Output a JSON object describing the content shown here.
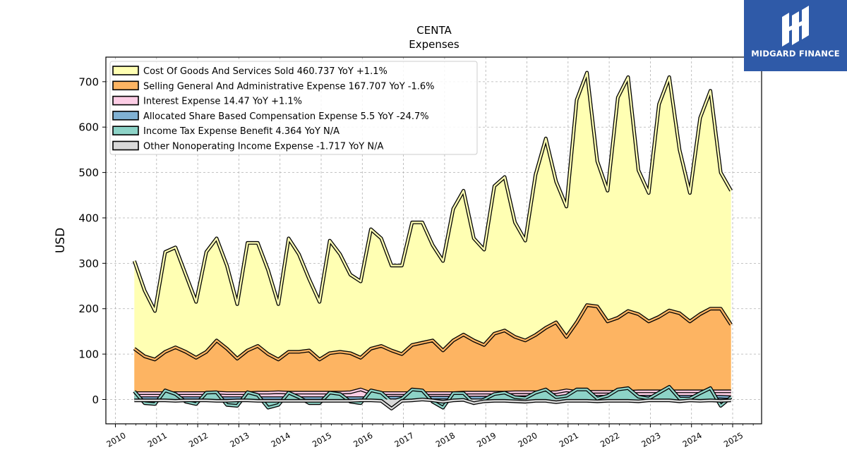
{
  "brand": {
    "name": "MIDGARD FINANCE",
    "bg_color": "#2f5aa8",
    "icon": "midgard-logo-icon"
  },
  "chart_data": {
    "type": "area",
    "title": "CENTA",
    "subtitle": "Expenses",
    "xlabel": "",
    "ylabel": "USD",
    "xlim": [
      2009.8,
      2025.7
    ],
    "ylim": [
      -55,
      755
    ],
    "x_ticks": [
      "2010",
      "2011",
      "2012",
      "2013",
      "2014",
      "2015",
      "2016",
      "2017",
      "2018",
      "2019",
      "2020",
      "2021",
      "2022",
      "2023",
      "2024",
      "2025"
    ],
    "y_ticks": [
      0,
      100,
      200,
      300,
      400,
      500,
      600,
      700
    ],
    "grid": true,
    "legend_position": "top-left",
    "x": [
      2010.46,
      2010.71,
      2010.96,
      2011.21,
      2011.46,
      2011.71,
      2011.96,
      2012.21,
      2012.46,
      2012.71,
      2012.96,
      2013.21,
      2013.46,
      2013.71,
      2013.96,
      2014.21,
      2014.46,
      2014.71,
      2014.96,
      2015.21,
      2015.46,
      2015.71,
      2015.96,
      2016.21,
      2016.46,
      2016.71,
      2016.96,
      2017.21,
      2017.46,
      2017.71,
      2017.96,
      2018.21,
      2018.46,
      2018.71,
      2018.96,
      2019.21,
      2019.46,
      2019.71,
      2019.96,
      2020.21,
      2020.46,
      2020.71,
      2020.96,
      2021.21,
      2021.46,
      2021.71,
      2021.96,
      2022.21,
      2022.46,
      2022.71,
      2022.96,
      2023.21,
      2023.46,
      2023.71,
      2023.96,
      2024.21,
      2024.46,
      2024.71,
      2024.96
    ],
    "series": [
      {
        "name": "Cost Of Goods And Services Sold",
        "legend": "Cost Of Goods And Services Sold  460.737 YoY +1.1%",
        "color": "#ffffb3",
        "values": [
          305,
          240,
          195,
          325,
          335,
          275,
          215,
          325,
          355,
          295,
          210,
          345,
          345,
          285,
          210,
          355,
          320,
          265,
          215,
          350,
          320,
          275,
          260,
          375,
          355,
          295,
          295,
          390,
          390,
          340,
          305,
          420,
          460,
          355,
          330,
          470,
          490,
          390,
          350,
          495,
          575,
          480,
          425,
          660,
          720,
          525,
          460,
          665,
          710,
          505,
          455,
          650,
          710,
          550,
          455,
          620,
          680,
          500,
          460
        ]
      },
      {
        "name": "Selling General And Administrative Expense",
        "legend": "Selling General And Administrative Expense  167.707 YoY -1.6%",
        "color": "#fdb462",
        "values": [
          112,
          95,
          88,
          105,
          115,
          105,
          92,
          105,
          130,
          112,
          90,
          108,
          118,
          100,
          88,
          105,
          105,
          108,
          88,
          102,
          105,
          102,
          92,
          112,
          118,
          108,
          100,
          120,
          125,
          130,
          108,
          130,
          143,
          130,
          120,
          145,
          152,
          138,
          130,
          142,
          158,
          170,
          138,
          170,
          208,
          205,
          172,
          180,
          195,
          188,
          172,
          182,
          196,
          190,
          172,
          188,
          200,
          200,
          165
        ]
      },
      {
        "name": "Interest Expense",
        "legend": "Interest Expense  14.47 YoY +1.1%",
        "color": "#fccde5",
        "values": [
          14,
          14,
          14,
          14,
          14,
          14,
          14,
          14,
          15,
          14,
          14,
          14,
          15,
          15,
          16,
          15,
          15,
          15,
          15,
          15,
          15,
          16,
          22,
          14,
          14,
          14,
          14,
          14,
          14,
          14,
          14,
          14,
          15,
          15,
          15,
          15,
          15,
          16,
          16,
          16,
          16,
          16,
          20,
          17,
          17,
          17,
          17,
          17,
          17,
          18,
          18,
          18,
          18,
          18,
          18,
          18,
          18,
          18,
          18
        ]
      },
      {
        "name": "Allocated Share Based Compensation Expense",
        "legend": "Allocated Share Based Compensation Expense  5.5 YoY -24.7%",
        "color": "#80b1d3",
        "values": [
          3,
          3,
          3,
          3,
          3,
          3,
          3,
          3,
          3,
          3,
          3,
          3,
          3,
          3,
          3,
          3,
          3,
          3,
          3,
          3,
          3,
          3,
          3,
          3,
          3,
          4,
          4,
          4,
          4,
          4,
          4,
          4,
          4,
          4,
          4,
          4,
          5,
          5,
          5,
          5,
          5,
          5,
          5,
          5,
          5,
          6,
          6,
          6,
          6,
          6,
          6,
          6,
          6,
          6,
          6,
          6,
          6,
          6,
          5
        ]
      },
      {
        "name": "Income Tax Expense Benefit",
        "legend": "Income Tax Expense Benefit  4.364 YoY N/A",
        "color": "#8dd3c7",
        "values": [
          18,
          -8,
          -10,
          20,
          12,
          -5,
          -10,
          15,
          16,
          -12,
          -14,
          16,
          10,
          -18,
          -12,
          15,
          5,
          -8,
          -8,
          15,
          12,
          -5,
          -8,
          20,
          15,
          -5,
          2,
          22,
          20,
          -5,
          -18,
          14,
          14,
          -8,
          0,
          12,
          15,
          5,
          3,
          15,
          22,
          5,
          8,
          22,
          22,
          2,
          8,
          22,
          25,
          6,
          2,
          15,
          28,
          2,
          2,
          14,
          25,
          -14,
          5
        ]
      },
      {
        "name": "Other Nonoperating Income Expense",
        "legend": "Other Nonoperating Income Expense  -1.717 YoY N/A",
        "color": "#d9d9d9",
        "values": [
          -2,
          -2,
          -2,
          -2,
          -3,
          -2,
          -2,
          -2,
          -3,
          -3,
          -2,
          -2,
          -3,
          -3,
          -3,
          -3,
          -3,
          -3,
          -3,
          -3,
          -3,
          -3,
          -2,
          -2,
          -3,
          -20,
          -3,
          -2,
          0,
          -2,
          -5,
          -2,
          -1,
          -8,
          -4,
          -3,
          -3,
          -4,
          -5,
          -3,
          -3,
          -6,
          -3,
          -3,
          -3,
          -4,
          -3,
          -3,
          -3,
          -4,
          -2,
          -2,
          -2,
          -4,
          -2,
          -3,
          -2,
          -3,
          -2
        ]
      }
    ]
  }
}
